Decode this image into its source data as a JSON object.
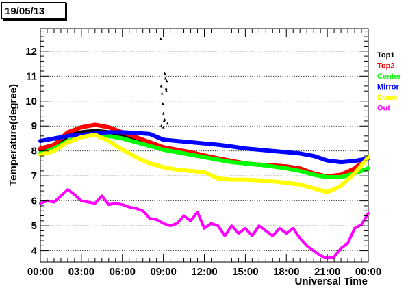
{
  "date_label": "19/05/13",
  "chart_data": {
    "type": "line",
    "title": "",
    "xlabel": "Universal Time",
    "ylabel": "Temperature(degree)",
    "xlim": [
      0,
      24
    ],
    "ylim": [
      3.55,
      12.9
    ],
    "x_tick_labels": [
      "00:00",
      "03:00",
      "06:00",
      "09:00",
      "12:00",
      "15:00",
      "18:00",
      "21:00",
      "00:00"
    ],
    "y_tick_labels": [
      "4",
      "5",
      "6",
      "7",
      "8",
      "9",
      "10",
      "11",
      "12"
    ],
    "grid": "horizontal dotted",
    "legend_position": "right",
    "series": [
      {
        "name": "Top1",
        "color": "#000000",
        "x": [
          0,
          1,
          2,
          3,
          4,
          5,
          6,
          7,
          8,
          9,
          10,
          11,
          12,
          13,
          14,
          15,
          16,
          17,
          18,
          19,
          20,
          21,
          22,
          23,
          24
        ],
        "y": [
          8.05,
          8.2,
          8.6,
          8.75,
          8.8,
          8.75,
          8.65,
          8.5,
          8.35,
          8.1,
          8.0,
          7.9,
          7.8,
          7.7,
          7.6,
          7.5,
          7.45,
          7.42,
          7.38,
          7.3,
          7.1,
          6.95,
          7.0,
          7.25,
          7.75
        ]
      },
      {
        "name": "Top2",
        "color": "#ff0000",
        "x": [
          0,
          1,
          2,
          3,
          4,
          5,
          6,
          7,
          8,
          9,
          10,
          11,
          12,
          13,
          14,
          15,
          16,
          17,
          18,
          19,
          20,
          21,
          22,
          23,
          24
        ],
        "y": [
          8.1,
          8.25,
          8.75,
          8.95,
          9.05,
          8.95,
          8.75,
          8.55,
          8.35,
          8.15,
          8.05,
          7.95,
          7.82,
          7.7,
          7.6,
          7.5,
          7.45,
          7.42,
          7.38,
          7.3,
          7.1,
          6.98,
          7.05,
          7.3,
          7.75
        ]
      },
      {
        "name": "Center",
        "color": "#00ff00",
        "x": [
          0,
          1,
          2,
          3,
          4,
          5,
          6,
          7,
          8,
          9,
          10,
          11,
          12,
          13,
          14,
          15,
          16,
          17,
          18,
          19,
          20,
          21,
          22,
          23,
          24
        ],
        "y": [
          7.9,
          8.1,
          8.4,
          8.55,
          8.65,
          8.6,
          8.5,
          8.35,
          8.2,
          8.05,
          7.95,
          7.85,
          7.75,
          7.65,
          7.55,
          7.5,
          7.45,
          7.38,
          7.3,
          7.2,
          7.05,
          6.95,
          6.95,
          7.1,
          7.3
        ]
      },
      {
        "name": "Mirror",
        "color": "#0000ff",
        "x": [
          0,
          1,
          2,
          3,
          4,
          5,
          6,
          7,
          8,
          9,
          10,
          11,
          12,
          13,
          14,
          15,
          16,
          17,
          18,
          19,
          20,
          21,
          22,
          23,
          24
        ],
        "y": [
          8.4,
          8.5,
          8.6,
          8.65,
          8.7,
          8.75,
          8.75,
          8.72,
          8.68,
          8.45,
          8.4,
          8.35,
          8.3,
          8.25,
          8.18,
          8.1,
          8.05,
          8.0,
          7.95,
          7.9,
          7.8,
          7.62,
          7.55,
          7.6,
          7.7
        ]
      },
      {
        "name": "Dome",
        "color": "#ffff00",
        "x": [
          0,
          1,
          2,
          3,
          4,
          5,
          6,
          7,
          8,
          9,
          10,
          11,
          12,
          13,
          14,
          15,
          16,
          17,
          18,
          19,
          20,
          21,
          22,
          23,
          24
        ],
        "y": [
          7.85,
          8.0,
          8.35,
          8.55,
          8.65,
          8.4,
          8.05,
          7.75,
          7.5,
          7.35,
          7.25,
          7.2,
          7.15,
          6.9,
          6.85,
          6.85,
          6.82,
          6.78,
          6.72,
          6.65,
          6.5,
          6.35,
          6.6,
          7.1,
          7.75
        ]
      },
      {
        "name": "Out",
        "color": "#ff00ff",
        "x": [
          0,
          0.5,
          1,
          1.5,
          2,
          2.5,
          3,
          3.5,
          4,
          4.5,
          5,
          5.5,
          6,
          6.5,
          7,
          7.5,
          8,
          8.5,
          9,
          9.5,
          10,
          10.5,
          11,
          11.5,
          12,
          12.5,
          13,
          13.5,
          14,
          14.5,
          15,
          15.5,
          16,
          16.5,
          17,
          17.5,
          18,
          18.5,
          19,
          19.5,
          20,
          20.5,
          21,
          21.5,
          22,
          22.5,
          23,
          23.5,
          24
        ],
        "y": [
          5.9,
          6.0,
          5.95,
          6.2,
          6.45,
          6.25,
          6.0,
          5.95,
          5.9,
          6.2,
          5.85,
          5.9,
          5.85,
          5.75,
          5.7,
          5.6,
          5.3,
          5.25,
          5.1,
          5.0,
          5.1,
          5.4,
          5.2,
          5.55,
          4.9,
          5.1,
          5.0,
          4.6,
          5.0,
          4.7,
          4.9,
          4.6,
          5.0,
          4.8,
          4.6,
          4.9,
          4.7,
          4.9,
          4.5,
          4.2,
          4.0,
          3.8,
          3.7,
          3.75,
          4.1,
          4.3,
          4.9,
          5.05,
          5.5
        ]
      },
      {
        "name": "",
        "color": "#000000",
        "markers": "triangle",
        "x": [
          8.8,
          8.85,
          8.9,
          8.95,
          9.0,
          9.05,
          9.1,
          9.15,
          9.2,
          9.22,
          9.25,
          9.3,
          8.85,
          9.0,
          9.1
        ],
        "y": [
          12.5,
          10.6,
          10.3,
          9.9,
          9.5,
          9.2,
          11.1,
          10.9,
          10.5,
          10.4,
          10.8,
          9.1,
          9.0,
          8.95,
          9.25
        ]
      }
    ]
  }
}
